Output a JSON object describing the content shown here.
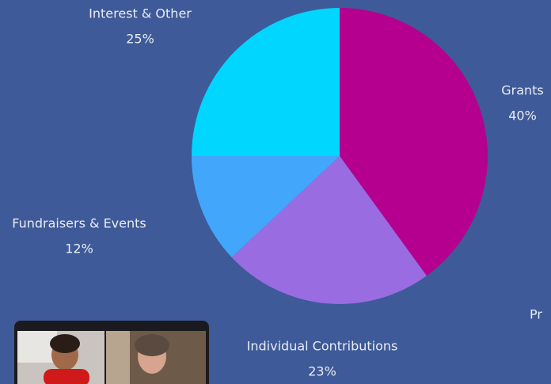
{
  "chart_data": {
    "type": "pie",
    "categories": [
      "Grants",
      "Individual Contributions",
      "Fundraisers & Events",
      "Interest & Other"
    ],
    "values": [
      40,
      23,
      12,
      25
    ],
    "value_labels": [
      "40%",
      "23%",
      "12%",
      "25%"
    ],
    "colors": [
      "#b5008f",
      "#9a6ce2",
      "#42a6fb",
      "#00d6ff"
    ]
  },
  "partial_text": "Pr"
}
